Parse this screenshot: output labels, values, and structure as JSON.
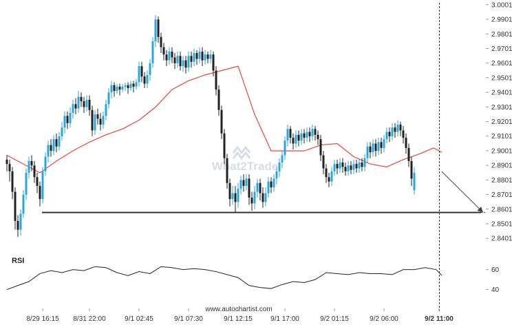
{
  "watermark": "What2Trade",
  "credit": "www.autochartist.com",
  "rsi_label": "RSI",
  "colors": {
    "bull": "#29a8d8",
    "bear": "#222222",
    "ma": "#e8463c",
    "level": "#333333",
    "rsi": "#222222",
    "time_marker": "#333333",
    "watermark": "#d5dde6"
  },
  "icons": {
    "watermark_logo": "wave-mark-icon"
  },
  "chart_data": [
    {
      "type": "candlestick",
      "panel": "price",
      "ylim": [
        2.835,
        3.0005
      ],
      "y_ticks": [
        "3.0001",
        "2.9901",
        "2.9801",
        "2.9701",
        "2.9601",
        "2.9501",
        "2.9401",
        "2.9301",
        "2.9201",
        "2.9101",
        "2.9001",
        "2.8901",
        "2.8801",
        "2.8701",
        "2.8601",
        "2.8501",
        "2.8401"
      ],
      "x_ticks": [
        "8/29 16:15",
        "8/31 22:00",
        "9/1 02:45",
        "9/1 07:30",
        "9/1 12:15",
        "9/1 17:00",
        "9/2 01:15",
        "9/2 06:00",
        "9/2 11:00"
      ],
      "x_tick_index": [
        13,
        30,
        48,
        66,
        84,
        101,
        119,
        137,
        157
      ],
      "current_time_index": 157,
      "support_level": 2.8578,
      "projection": {
        "from_index": 158,
        "from_value": 2.8858,
        "to_index": 173,
        "to_value": 2.8578
      },
      "candles": [
        [
          2.894,
          2.891,
          2.897,
          2.886
        ],
        [
          2.891,
          2.886,
          2.894,
          2.879
        ],
        [
          2.886,
          2.872,
          2.889,
          2.867
        ],
        [
          2.872,
          2.852,
          2.875,
          2.846
        ],
        [
          2.852,
          2.846,
          2.856,
          2.841
        ],
        [
          2.846,
          2.857,
          2.86,
          2.842
        ],
        [
          2.857,
          2.87,
          2.873,
          2.854
        ],
        [
          2.87,
          2.885,
          2.888,
          2.866
        ],
        [
          2.885,
          2.893,
          2.896,
          2.881
        ],
        [
          2.893,
          2.89,
          2.897,
          2.886
        ],
        [
          2.89,
          2.882,
          2.893,
          2.878
        ],
        [
          2.882,
          2.876,
          2.885,
          2.871
        ],
        [
          2.876,
          2.867,
          2.879,
          2.862
        ],
        [
          2.867,
          2.886,
          2.889,
          2.864
        ],
        [
          2.886,
          2.896,
          2.899,
          2.883
        ],
        [
          2.896,
          2.904,
          2.907,
          2.892
        ],
        [
          2.904,
          2.9,
          2.908,
          2.896
        ],
        [
          2.9,
          2.908,
          2.911,
          2.897
        ],
        [
          2.908,
          2.903,
          2.912,
          2.899
        ],
        [
          2.903,
          2.91,
          2.913,
          2.9
        ],
        [
          2.91,
          2.916,
          2.92,
          2.907
        ],
        [
          2.916,
          2.924,
          2.927,
          2.912
        ],
        [
          2.924,
          2.919,
          2.927,
          2.915
        ],
        [
          2.919,
          2.926,
          2.93,
          2.916
        ],
        [
          2.926,
          2.932,
          2.935,
          2.922
        ],
        [
          2.932,
          2.929,
          2.936,
          2.925
        ],
        [
          2.929,
          2.937,
          2.941,
          2.926
        ],
        [
          2.937,
          2.934,
          2.94,
          2.93
        ],
        [
          2.934,
          2.93,
          2.937,
          2.926
        ],
        [
          2.93,
          2.935,
          2.938,
          2.927
        ],
        [
          2.935,
          2.928,
          2.938,
          2.924
        ],
        [
          2.928,
          2.914,
          2.931,
          2.91
        ],
        [
          2.914,
          2.925,
          2.928,
          2.911
        ],
        [
          2.925,
          2.922,
          2.929,
          2.918
        ],
        [
          2.922,
          2.918,
          2.926,
          2.914
        ],
        [
          2.918,
          2.924,
          2.927,
          2.915
        ],
        [
          2.924,
          2.932,
          2.935,
          2.921
        ],
        [
          2.932,
          2.94,
          2.943,
          2.929
        ],
        [
          2.94,
          2.945,
          2.948,
          2.936
        ],
        [
          2.945,
          2.941,
          2.947,
          2.937
        ],
        [
          2.941,
          2.944,
          2.946,
          2.939
        ],
        [
          2.944,
          2.942,
          2.946,
          2.938
        ],
        [
          2.942,
          2.944,
          2.946,
          2.94
        ],
        [
          2.944,
          2.945,
          2.947,
          2.941
        ],
        [
          2.945,
          2.943,
          2.947,
          2.939
        ],
        [
          2.943,
          2.946,
          2.948,
          2.941
        ],
        [
          2.946,
          2.944,
          2.948,
          2.94
        ],
        [
          2.944,
          2.947,
          2.949,
          2.942
        ],
        [
          2.947,
          2.958,
          2.961,
          2.944
        ],
        [
          2.958,
          2.951,
          2.961,
          2.947
        ],
        [
          2.951,
          2.946,
          2.954,
          2.943
        ],
        [
          2.946,
          2.952,
          2.955,
          2.943
        ],
        [
          2.952,
          2.96,
          2.963,
          2.948
        ],
        [
          2.96,
          2.975,
          2.978,
          2.957
        ],
        [
          2.975,
          2.99,
          2.993,
          2.971
        ],
        [
          2.99,
          2.978,
          2.992,
          2.974
        ],
        [
          2.978,
          2.971,
          2.981,
          2.967
        ],
        [
          2.971,
          2.966,
          2.974,
          2.962
        ],
        [
          2.966,
          2.962,
          2.969,
          2.958
        ],
        [
          2.962,
          2.968,
          2.971,
          2.959
        ],
        [
          2.968,
          2.964,
          2.971,
          2.96
        ],
        [
          2.964,
          2.96,
          2.967,
          2.956
        ],
        [
          2.96,
          2.965,
          2.968,
          2.957
        ],
        [
          2.965,
          2.958,
          2.968,
          2.955
        ],
        [
          2.958,
          2.962,
          2.965,
          2.954
        ],
        [
          2.962,
          2.957,
          2.965,
          2.953
        ],
        [
          2.957,
          2.965,
          2.968,
          2.954
        ],
        [
          2.965,
          2.961,
          2.968,
          2.957
        ],
        [
          2.961,
          2.967,
          2.97,
          2.958
        ],
        [
          2.967,
          2.963,
          2.969,
          2.959
        ],
        [
          2.963,
          2.968,
          2.971,
          2.96
        ],
        [
          2.968,
          2.962,
          2.971,
          2.958
        ],
        [
          2.962,
          2.966,
          2.969,
          2.959
        ],
        [
          2.966,
          2.963,
          2.968,
          2.96
        ],
        [
          2.963,
          2.966,
          2.969,
          2.96
        ],
        [
          2.966,
          2.955,
          2.968,
          2.951
        ],
        [
          2.955,
          2.942,
          2.958,
          2.938
        ],
        [
          2.942,
          2.928,
          2.945,
          2.924
        ],
        [
          2.928,
          2.912,
          2.931,
          2.908
        ],
        [
          2.912,
          2.895,
          2.915,
          2.891
        ],
        [
          2.895,
          2.878,
          2.898,
          2.874
        ],
        [
          2.878,
          2.867,
          2.881,
          2.862
        ],
        [
          2.867,
          2.871,
          2.876,
          2.863
        ],
        [
          2.871,
          2.865,
          2.876,
          2.858
        ],
        [
          2.865,
          2.874,
          2.878,
          2.861
        ],
        [
          2.874,
          2.88,
          2.883,
          2.87
        ],
        [
          2.88,
          2.876,
          2.884,
          2.872
        ],
        [
          2.876,
          2.881,
          2.884,
          2.873
        ],
        [
          2.881,
          2.868,
          2.884,
          2.863
        ],
        [
          2.868,
          2.864,
          2.872,
          2.859
        ],
        [
          2.864,
          2.872,
          2.876,
          2.86
        ],
        [
          2.872,
          2.878,
          2.881,
          2.868
        ],
        [
          2.878,
          2.871,
          2.881,
          2.866
        ],
        [
          2.871,
          2.865,
          2.875,
          2.861
        ],
        [
          2.865,
          2.871,
          2.875,
          2.862
        ],
        [
          2.871,
          2.879,
          2.882,
          2.868
        ],
        [
          2.879,
          2.875,
          2.882,
          2.871
        ],
        [
          2.875,
          2.881,
          2.884,
          2.872
        ],
        [
          2.881,
          2.886,
          2.889,
          2.877
        ],
        [
          2.886,
          2.892,
          2.895,
          2.882
        ],
        [
          2.892,
          2.897,
          2.9,
          2.888
        ],
        [
          2.897,
          2.907,
          2.91,
          2.894
        ],
        [
          2.907,
          2.915,
          2.918,
          2.903
        ],
        [
          2.915,
          2.909,
          2.917,
          2.905
        ],
        [
          2.909,
          2.905,
          2.912,
          2.901
        ],
        [
          2.905,
          2.911,
          2.914,
          2.902
        ],
        [
          2.911,
          2.907,
          2.914,
          2.903
        ],
        [
          2.907,
          2.912,
          2.915,
          2.904
        ],
        [
          2.912,
          2.909,
          2.915,
          2.905
        ],
        [
          2.909,
          2.913,
          2.916,
          2.906
        ],
        [
          2.913,
          2.91,
          2.916,
          2.906
        ],
        [
          2.91,
          2.915,
          2.918,
          2.907
        ],
        [
          2.915,
          2.911,
          2.917,
          2.907
        ],
        [
          2.911,
          2.908,
          2.914,
          2.904
        ],
        [
          2.908,
          2.897,
          2.911,
          2.893
        ],
        [
          2.897,
          2.888,
          2.9,
          2.884
        ],
        [
          2.888,
          2.882,
          2.891,
          2.878
        ],
        [
          2.882,
          2.879,
          2.885,
          2.875
        ],
        [
          2.879,
          2.886,
          2.889,
          2.876
        ],
        [
          2.886,
          2.891,
          2.894,
          2.883
        ],
        [
          2.891,
          2.888,
          2.894,
          2.884
        ],
        [
          2.888,
          2.892,
          2.895,
          2.885
        ],
        [
          2.892,
          2.889,
          2.895,
          2.885
        ],
        [
          2.889,
          2.886,
          2.892,
          2.883
        ],
        [
          2.886,
          2.89,
          2.893,
          2.883
        ],
        [
          2.89,
          2.887,
          2.893,
          2.884
        ],
        [
          2.887,
          2.891,
          2.894,
          2.884
        ],
        [
          2.891,
          2.888,
          2.894,
          2.885
        ],
        [
          2.888,
          2.892,
          2.895,
          2.885
        ],
        [
          2.892,
          2.889,
          2.895,
          2.886
        ],
        [
          2.889,
          2.895,
          2.898,
          2.886
        ],
        [
          2.895,
          2.903,
          2.906,
          2.892
        ],
        [
          2.903,
          2.899,
          2.906,
          2.895
        ],
        [
          2.899,
          2.905,
          2.908,
          2.896
        ],
        [
          2.905,
          2.9,
          2.908,
          2.896
        ],
        [
          2.9,
          2.906,
          2.909,
          2.897
        ],
        [
          2.906,
          2.902,
          2.909,
          2.898
        ],
        [
          2.902,
          2.908,
          2.911,
          2.899
        ],
        [
          2.908,
          2.913,
          2.916,
          2.905
        ],
        [
          2.913,
          2.91,
          2.916,
          2.906
        ],
        [
          2.91,
          2.916,
          2.919,
          2.907
        ],
        [
          2.916,
          2.913,
          2.919,
          2.909
        ],
        [
          2.913,
          2.918,
          2.921,
          2.91
        ],
        [
          2.918,
          2.914,
          2.92,
          2.91
        ],
        [
          2.914,
          2.909,
          2.917,
          2.905
        ],
        [
          2.909,
          2.902,
          2.912,
          2.898
        ],
        [
          2.902,
          2.893,
          2.905,
          2.889
        ],
        [
          2.893,
          2.881,
          2.896,
          2.876
        ],
        [
          2.873,
          2.885,
          2.889,
          2.87
        ]
      ],
      "ma_series": {
        "index": [
          0,
          6,
          12,
          18,
          24,
          30,
          36,
          42,
          48,
          54,
          60,
          66,
          72,
          78,
          84,
          90,
          96,
          102,
          108,
          114,
          120,
          126,
          132,
          138,
          144,
          150,
          155,
          158
        ],
        "values": [
          2.897,
          2.891,
          2.885,
          2.893,
          2.9,
          2.906,
          2.911,
          2.915,
          2.921,
          2.93,
          2.942,
          2.948,
          2.952,
          2.955,
          2.958,
          2.925,
          2.9,
          2.9,
          2.9,
          2.904,
          2.905,
          2.896,
          2.891,
          2.889,
          2.894,
          2.898,
          2.902,
          2.899
        ]
      }
    },
    {
      "type": "line",
      "panel": "RSI",
      "ylim": [
        30,
        75
      ],
      "y_ticks": [
        "60",
        "40"
      ],
      "series": [
        {
          "index": [
            0,
            4,
            8,
            12,
            16,
            20,
            24,
            28,
            32,
            36,
            40,
            44,
            48,
            52,
            56,
            60,
            64,
            68,
            72,
            76,
            80,
            84,
            88,
            92,
            96,
            100,
            104,
            108,
            112,
            116,
            120,
            124,
            128,
            132,
            136,
            140,
            144,
            148,
            152,
            156,
            158
          ],
          "values": [
            40,
            44,
            48,
            56,
            59,
            57,
            60,
            59,
            63,
            62,
            57,
            54,
            58,
            56,
            63,
            62,
            60,
            61,
            60,
            58,
            55,
            52,
            44,
            42,
            41,
            45,
            48,
            47,
            50,
            57,
            56,
            55,
            57,
            56,
            56,
            55,
            60,
            60,
            62,
            60,
            54
          ]
        }
      ]
    }
  ]
}
